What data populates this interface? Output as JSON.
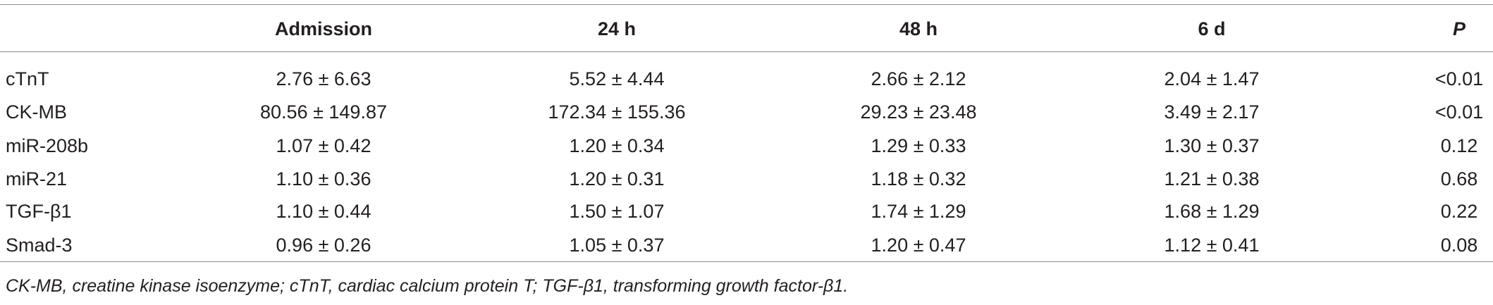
{
  "table": {
    "header": [
      "Admission",
      "24 h",
      "48 h",
      "6 d",
      "P"
    ],
    "rows": [
      [
        "cTnT",
        "2.76 ± 6.63",
        "5.52 ± 4.44",
        "2.66 ± 2.12",
        "2.04 ± 1.47",
        "<0.01"
      ],
      [
        "CK-MB",
        "80.56 ± 149.87",
        "172.34 ± 155.36",
        "29.23 ± 23.48",
        "3.49 ± 2.17",
        "<0.01"
      ],
      [
        "miR-208b",
        "1.07 ± 0.42",
        "1.20 ± 0.34",
        "1.29 ± 0.33",
        "1.30 ± 0.37",
        "0.12"
      ],
      [
        "miR-21",
        "1.10 ± 0.36",
        "1.20 ± 0.31",
        "1.18 ± 0.32",
        "1.21 ± 0.38",
        "0.68"
      ],
      [
        "TGF-β1",
        "1.10 ± 0.44",
        "1.50 ± 1.07",
        "1.74 ± 1.29",
        "1.68 ± 1.29",
        "0.22"
      ],
      [
        "Smad-3",
        "0.96 ± 0.26",
        "1.05 ± 0.37",
        "1.20 ± 0.47",
        "1.12 ± 0.41",
        "0.08"
      ]
    ],
    "footnote": "CK-MB, creatine kinase isoenzyme; cTnT, cardiac calcium protein T; TGF-β1, transforming growth factor-β1."
  }
}
